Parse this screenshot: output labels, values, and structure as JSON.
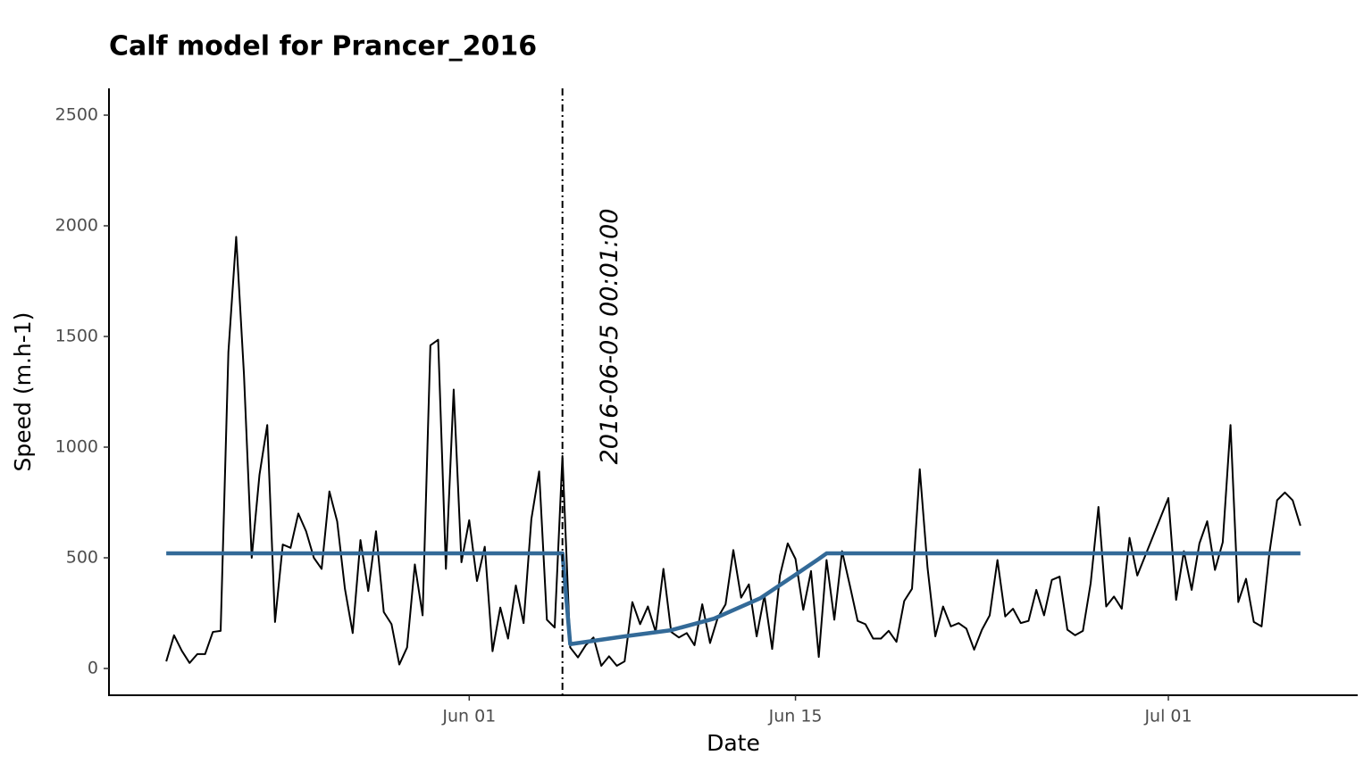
{
  "chart_data": {
    "type": "line",
    "title": "Calf model for Prancer_2016",
    "x_label": "Date",
    "y_label": "Speed (m.h-1)",
    "xlim": [
      "2016-05-16T13:00",
      "2016-07-09T03:00"
    ],
    "xticks": [
      {
        "value": "2016-06-01T00:00",
        "label": "Jun 01"
      },
      {
        "value": "2016-06-15T00:00",
        "label": "Jun 15"
      },
      {
        "value": "2016-07-01T00:00",
        "label": "Jul 01"
      }
    ],
    "ylim": [
      -121,
      2621
    ],
    "yticks": [
      0,
      500,
      1000,
      1500,
      2000,
      2500
    ],
    "grid": false,
    "annotation": {
      "x": "2016-06-05T00:01",
      "label": "2016-06-05 00:01:00"
    },
    "series": [
      {
        "color": "#000000",
        "width": 2,
        "x": [
          "2016-05-19T00:00",
          "2016-05-19T08:00",
          "2016-05-19T16:00",
          "2016-05-20T00:00",
          "2016-05-20T08:00",
          "2016-05-20T16:00",
          "2016-05-21T00:00",
          "2016-05-21T08:00",
          "2016-05-21T16:00",
          "2016-05-22T00:00",
          "2016-05-22T08:00",
          "2016-05-22T16:00",
          "2016-05-23T00:00",
          "2016-05-23T08:00",
          "2016-05-23T16:00",
          "2016-05-24T00:00",
          "2016-05-24T08:00",
          "2016-05-24T16:00",
          "2016-05-25T00:00",
          "2016-05-25T08:00",
          "2016-05-25T16:00",
          "2016-05-26T00:00",
          "2016-05-26T08:00",
          "2016-05-26T16:00",
          "2016-05-27T00:00",
          "2016-05-27T08:00",
          "2016-05-27T16:00",
          "2016-05-28T00:00",
          "2016-05-28T08:00",
          "2016-05-28T16:00",
          "2016-05-29T00:00",
          "2016-05-29T08:00",
          "2016-05-29T16:00",
          "2016-05-30T00:00",
          "2016-05-30T08:00",
          "2016-05-30T16:00",
          "2016-05-31T00:00",
          "2016-05-31T08:00",
          "2016-05-31T16:00",
          "2016-06-01T00:00",
          "2016-06-01T08:00",
          "2016-06-01T16:00",
          "2016-06-02T00:00",
          "2016-06-02T08:00",
          "2016-06-02T16:00",
          "2016-06-03T00:00",
          "2016-06-03T08:00",
          "2016-06-03T16:00",
          "2016-06-04T00:00",
          "2016-06-04T08:00",
          "2016-06-04T16:00",
          "2016-06-05T00:00",
          "2016-06-05T08:00",
          "2016-06-05T16:00",
          "2016-06-06T00:00",
          "2016-06-06T08:00",
          "2016-06-06T16:00",
          "2016-06-07T00:00",
          "2016-06-07T08:00",
          "2016-06-07T16:00",
          "2016-06-08T00:00",
          "2016-06-08T08:00",
          "2016-06-08T16:00",
          "2016-06-09T00:00",
          "2016-06-09T08:00",
          "2016-06-09T16:00",
          "2016-06-10T00:00",
          "2016-06-10T08:00",
          "2016-06-10T16:00",
          "2016-06-11T00:00",
          "2016-06-11T08:00",
          "2016-06-11T16:00",
          "2016-06-12T00:00",
          "2016-06-12T08:00",
          "2016-06-12T16:00",
          "2016-06-13T00:00",
          "2016-06-13T08:00",
          "2016-06-13T16:00",
          "2016-06-14T00:00",
          "2016-06-14T08:00",
          "2016-06-14T16:00",
          "2016-06-15T00:00",
          "2016-06-15T08:00",
          "2016-06-15T16:00",
          "2016-06-16T00:00",
          "2016-06-16T08:00",
          "2016-06-16T16:00",
          "2016-06-17T00:00",
          "2016-06-17T08:00",
          "2016-06-17T16:00",
          "2016-06-18T00:00",
          "2016-06-18T08:00",
          "2016-06-18T16:00",
          "2016-06-19T00:00",
          "2016-06-19T08:00",
          "2016-06-19T16:00",
          "2016-06-20T00:00",
          "2016-06-20T08:00",
          "2016-06-20T16:00",
          "2016-06-21T00:00",
          "2016-06-21T08:00",
          "2016-06-21T16:00",
          "2016-06-22T00:00",
          "2016-06-22T08:00",
          "2016-06-22T16:00",
          "2016-06-23T00:00",
          "2016-06-23T08:00",
          "2016-06-23T16:00",
          "2016-06-24T00:00",
          "2016-06-24T08:00",
          "2016-06-24T16:00",
          "2016-06-25T00:00",
          "2016-06-25T08:00",
          "2016-06-25T16:00",
          "2016-06-26T00:00",
          "2016-06-26T08:00",
          "2016-06-26T16:00",
          "2016-06-27T00:00",
          "2016-06-27T08:00",
          "2016-06-27T16:00",
          "2016-06-28T00:00",
          "2016-06-28T08:00",
          "2016-06-28T16:00",
          "2016-06-29T00:00",
          "2016-06-29T08:00",
          "2016-06-29T16:00",
          "2016-07-01T00:00",
          "2016-07-01T08:00",
          "2016-07-01T16:00",
          "2016-07-02T00:00",
          "2016-07-02T08:00",
          "2016-07-02T16:00",
          "2016-07-03T00:00",
          "2016-07-03T08:00",
          "2016-07-03T16:00",
          "2016-07-04T00:00",
          "2016-07-04T08:00",
          "2016-07-04T16:00",
          "2016-07-05T00:00",
          "2016-07-05T08:00",
          "2016-07-05T16:00",
          "2016-07-06T00:00",
          "2016-07-06T08:00",
          "2016-07-06T16:00"
        ],
        "values": [
          32,
          150,
          80,
          25,
          65,
          65,
          165,
          170,
          1430,
          1950,
          1330,
          500,
          875,
          1100,
          210,
          560,
          545,
          700,
          620,
          500,
          450,
          800,
          665,
          360,
          160,
          580,
          350,
          620,
          255,
          200,
          18,
          95,
          470,
          240,
          1460,
          1485,
          450,
          1260,
          480,
          670,
          395,
          550,
          78,
          275,
          135,
          375,
          205,
          675,
          890,
          220,
          185,
          960,
          95,
          50,
          105,
          140,
          12,
          55,
          12,
          32,
          300,
          200,
          280,
          165,
          450,
          165,
          140,
          160,
          105,
          290,
          115,
          230,
          290,
          535,
          320,
          380,
          145,
          330,
          88,
          420,
          565,
          495,
          265,
          440,
          52,
          490,
          220,
          530,
          375,
          215,
          200,
          135,
          135,
          170,
          120,
          305,
          360,
          900,
          455,
          145,
          280,
          190,
          205,
          180,
          85,
          175,
          240,
          490,
          235,
          270,
          205,
          215,
          355,
          240,
          400,
          415,
          175,
          150,
          170,
          385,
          730,
          280,
          325,
          270,
          590,
          420,
          770,
          310,
          530,
          355,
          565,
          665,
          445,
          570,
          1100,
          300,
          405,
          210,
          190,
          520,
          760,
          795,
          760,
          645
        ]
      },
      {
        "color": "#336a98",
        "width": 4.5,
        "x": [
          "2016-05-19T00:00",
          "2016-06-05T00:01",
          "2016-06-05T08:00",
          "2016-06-07T16:00",
          "2016-06-09T16:00",
          "2016-06-11T12:00",
          "2016-06-13T12:00",
          "2016-06-14T16:00",
          "2016-06-16T00:00",
          "2016-06-16T08:00",
          "2016-07-06T16:00"
        ],
        "values": [
          520,
          520,
          110,
          145,
          173,
          225,
          318,
          400,
          495,
          520,
          520
        ]
      }
    ]
  }
}
